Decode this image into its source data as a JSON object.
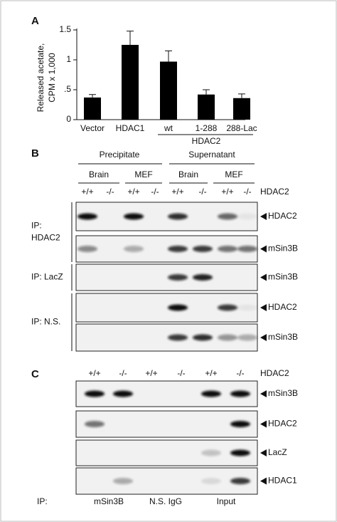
{
  "chart_data": {
    "type": "bar",
    "label": "A",
    "ylabel_lines": [
      "Released acetate,",
      "CPM x 1,000"
    ],
    "categories": [
      "Vector",
      "HDAC1",
      "wt",
      "1-288",
      "288-Lac"
    ],
    "group_label": "HDAC2",
    "values": [
      0.37,
      1.25,
      0.97,
      0.42,
      0.36
    ],
    "errors": [
      0.05,
      0.23,
      0.18,
      0.08,
      0.07
    ],
    "color": "#000000",
    "ylim": [
      0,
      1.5
    ],
    "yticks": [
      0,
      {
        "value": 0.5,
        "label": ".5"
      },
      1,
      1.5
    ]
  },
  "panel_b": {
    "label": "B",
    "headers": [
      "Precipitate",
      "Supernatant"
    ],
    "subheaders": [
      "Brain",
      "MEF",
      "Brain",
      "MEF"
    ],
    "genotypes": [
      "+/+",
      "-/-",
      "+/+",
      "-/-",
      "+/+",
      "-/-",
      "+/+",
      "-/-"
    ],
    "genotype_label": "HDAC2",
    "groups": [
      {
        "ip": [
          "IP:",
          "HDAC2"
        ],
        "blots": [
          "HDAC2",
          "mSin3B"
        ]
      },
      {
        "ip": [
          "IP: LacZ"
        ],
        "blots": [
          "mSin3B"
        ]
      },
      {
        "ip": [
          "IP: N.S."
        ],
        "blots": [
          "HDAC2",
          "mSin3B"
        ]
      }
    ]
  },
  "panel_c": {
    "label": "C",
    "genotypes": [
      "+/+",
      "-/-",
      "+/+",
      "-/-",
      "+/+",
      "-/-"
    ],
    "genotype_label": "HDAC2",
    "blots": [
      "mSin3B",
      "HDAC2",
      "LacZ",
      "HDAC1"
    ],
    "ip_prefix": "IP:",
    "ip_groups": [
      "mSin3B",
      "N.S. IgG",
      "Input"
    ]
  }
}
